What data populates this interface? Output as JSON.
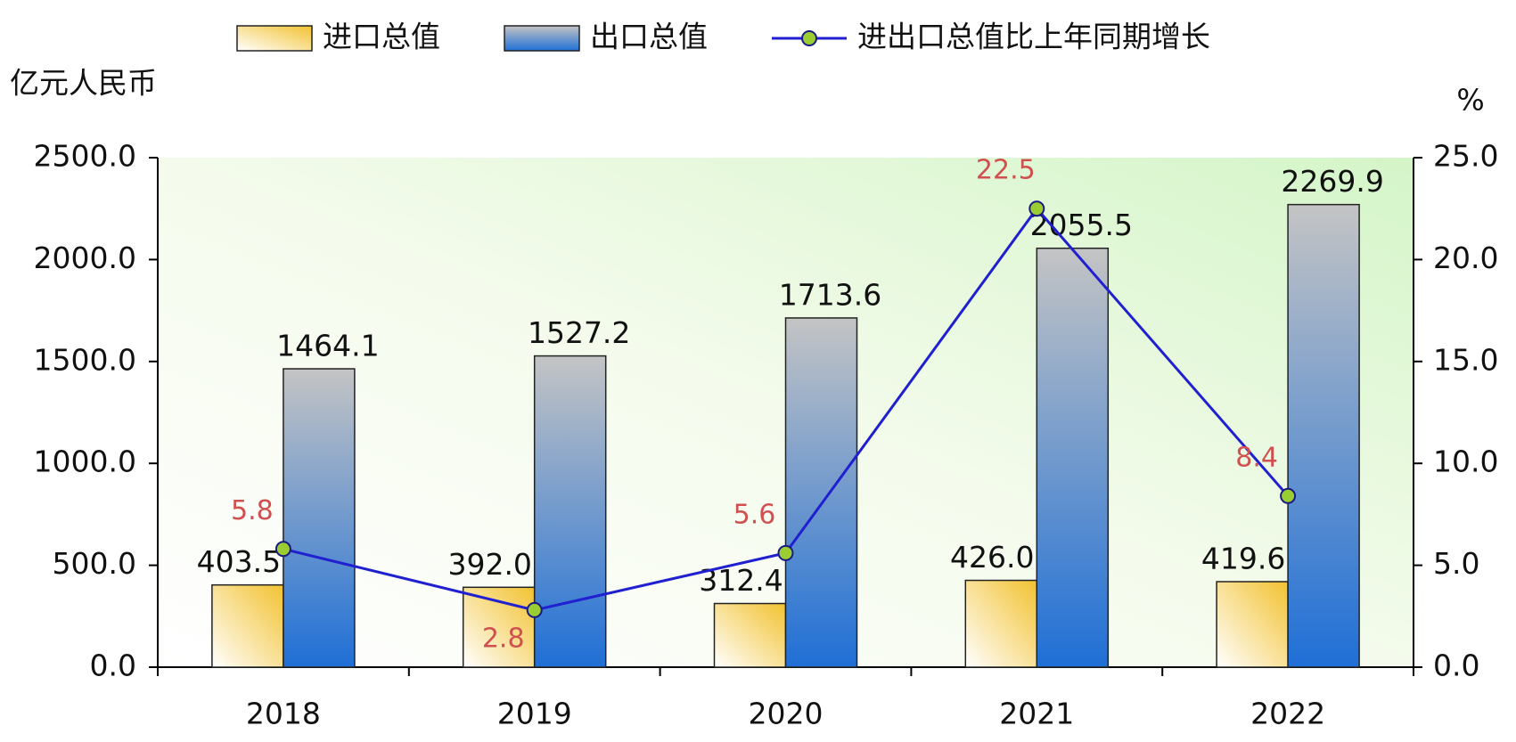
{
  "chart_data": {
    "type": "bar",
    "y_label": "亿元人民币",
    "y2_label": "%",
    "categories": [
      "2018",
      "2019",
      "2020",
      "2021",
      "2022"
    ],
    "series": [
      {
        "name": "进口总值",
        "type": "bar",
        "color": "#f2c230",
        "values": [
          403.5,
          392.0,
          312.4,
          426.0,
          419.6
        ],
        "value_labels": [
          "403.5",
          "392.0",
          "312.4",
          "426.0",
          "419.6"
        ]
      },
      {
        "name": "出口总值",
        "type": "bar",
        "color": "#1f6fd6",
        "values": [
          1464.1,
          1527.2,
          1713.6,
          2055.5,
          2269.9
        ],
        "value_labels": [
          "1464.1",
          "1527.2",
          "1713.6",
          "2055.5",
          "2269.9"
        ]
      },
      {
        "name": "进出口总值比上年同期增长",
        "type": "line",
        "axis": "y2",
        "color": "#2020d0",
        "label_color": "#d05050",
        "values": [
          5.8,
          2.8,
          5.6,
          22.5,
          8.4
        ]
      }
    ],
    "ylim": [
      0,
      2500
    ],
    "yticks": [
      {
        "value": 0,
        "label": "0.0"
      },
      {
        "value": 500,
        "label": "500.0"
      },
      {
        "value": 1000,
        "label": "1000.0"
      },
      {
        "value": 1500,
        "label": "1500.0"
      },
      {
        "value": 2000,
        "label": "2000.0"
      },
      {
        "value": 2500,
        "label": "2500.0"
      }
    ],
    "y2lim": [
      0,
      25
    ],
    "y2ticks": [
      {
        "value": 0,
        "label": "0.0"
      },
      {
        "value": 5,
        "label": "5.0"
      },
      {
        "value": 10,
        "label": "10.0"
      },
      {
        "value": 15,
        "label": "15.0"
      },
      {
        "value": 20,
        "label": "20.0"
      },
      {
        "value": 25,
        "label": "25.0"
      }
    ],
    "legend": "top"
  }
}
